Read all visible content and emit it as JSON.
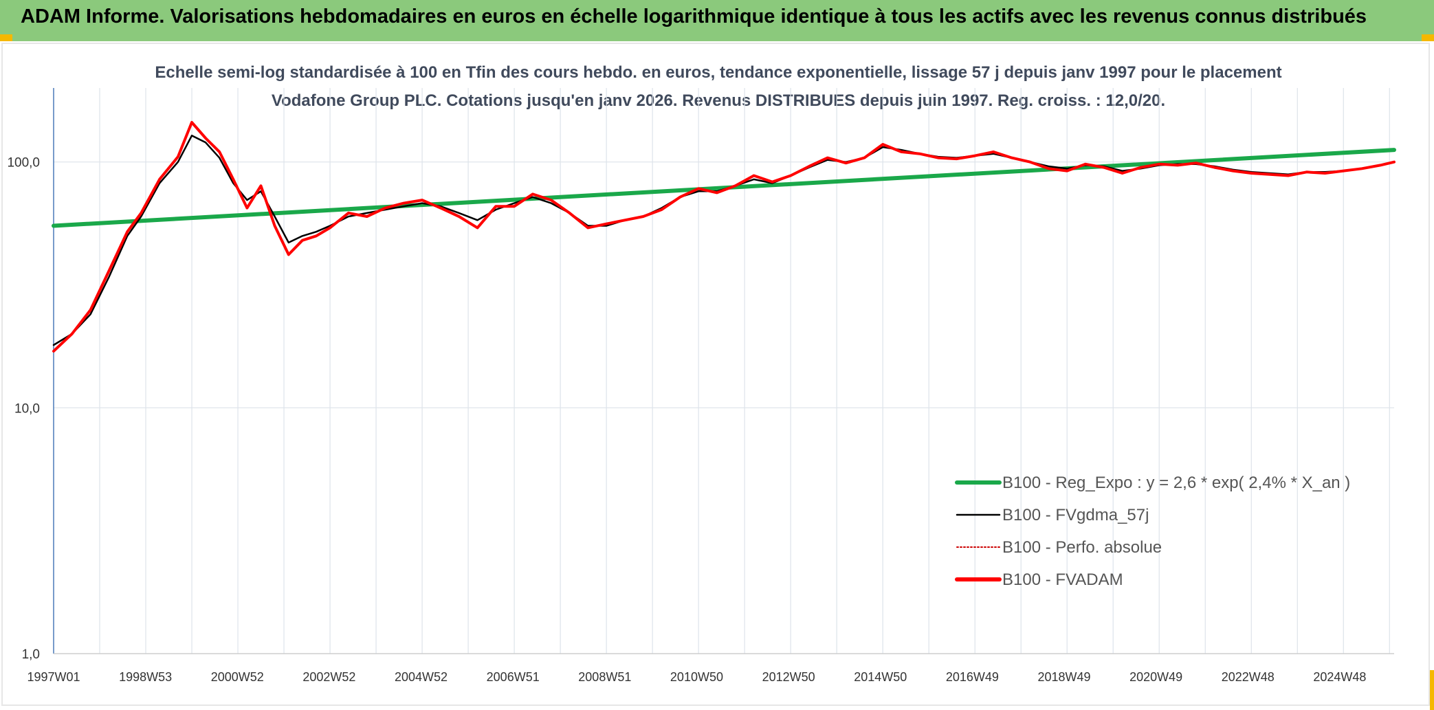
{
  "header": {
    "title": "ADAM Informe. Valorisations hebdomadaires en euros en échelle logarithmique identique à tous les actifs avec les revenus connus distribués",
    "bar_color": "#8bc97c",
    "corner_color": "#f5b800"
  },
  "chart_data": {
    "type": "line",
    "title": "Echelle semi-log standardisée à 100 en Tfin des cours hebdo. en euros, tendance exponentielle, lissage 57 j depuis janv 1997 pour le placement Vodafone Group PLC. Cotations jusqu'en janv 2026. Revenus DISTRIBUES depuis juin 1997. Reg. croiss. : 12,0/20.",
    "xlabel": "",
    "ylabel": "",
    "yscale": "log",
    "ylim": [
      1,
      200
    ],
    "grid": true,
    "legend_position": "bottom-right",
    "y_ticks": [
      "1,0",
      "10,0",
      "100,0"
    ],
    "x_ticks": [
      "1997W01",
      "1998W53",
      "2000W52",
      "2002W52",
      "2004W52",
      "2006W51",
      "2008W51",
      "2010W50",
      "2012W50",
      "2014W50",
      "2016W49",
      "2018W49",
      "2020W49",
      "2022W48",
      "2024W48"
    ],
    "x_range": [
      "1997W01",
      "2026W03"
    ],
    "series": [
      {
        "name": "B100 - Reg_Expo : y = 2,6 * exp( 2,4% *  X_an )",
        "color": "#1aa84a",
        "style": "solid-thick",
        "x": [
          1997.0,
          2026.1
        ],
        "y": [
          55,
          112
        ]
      },
      {
        "name": "B100 - FVgdma_57j",
        "color": "#000000",
        "style": "solid-thin",
        "x": [
          1997.0,
          1997.4,
          1997.8,
          1998.2,
          1998.6,
          1998.9,
          1999.3,
          1999.7,
          2000.0,
          2000.3,
          2000.6,
          2000.9,
          2001.2,
          2001.5,
          2001.8,
          2002.1,
          2002.4,
          2002.7,
          2003.0,
          2003.4,
          2003.8,
          2004.2,
          2004.6,
          2005.0,
          2005.4,
          2005.8,
          2006.2,
          2006.6,
          2007.0,
          2007.4,
          2007.8,
          2008.2,
          2008.6,
          2009.0,
          2009.4,
          2009.8,
          2010.2,
          2010.6,
          2011.0,
          2011.4,
          2011.8,
          2012.2,
          2012.6,
          2013.0,
          2013.4,
          2013.8,
          2014.2,
          2014.6,
          2015.0,
          2015.4,
          2015.8,
          2016.2,
          2016.6,
          2017.0,
          2017.4,
          2017.8,
          2018.2,
          2018.6,
          2019.0,
          2019.4,
          2019.8,
          2020.2,
          2020.6,
          2021.0,
          2021.4,
          2021.8,
          2022.2,
          2022.6,
          2023.0,
          2023.4,
          2023.8,
          2024.2,
          2024.6,
          2025.0,
          2025.4,
          2025.8,
          2026.1
        ],
        "y": [
          18,
          20,
          24,
          34,
          50,
          60,
          82,
          100,
          128,
          120,
          104,
          82,
          70,
          76,
          60,
          47,
          50,
          52,
          55,
          60,
          62,
          64,
          66,
          68,
          66,
          62,
          58,
          64,
          68,
          72,
          68,
          62,
          55,
          55,
          58,
          60,
          65,
          72,
          76,
          76,
          80,
          85,
          82,
          88,
          95,
          102,
          100,
          104,
          115,
          112,
          108,
          105,
          104,
          106,
          108,
          104,
          100,
          96,
          94,
          97,
          96,
          92,
          94,
          97,
          98,
          98,
          96,
          93,
          91,
          90,
          89,
          91,
          91,
          92,
          94,
          97,
          100
        ]
      },
      {
        "name": "B100 - Perfo. absolue",
        "color": "#cc0000",
        "style": "dotted",
        "x": [
          1997.0,
          1997.4,
          1997.8,
          1998.2,
          1998.6,
          1998.9,
          1999.3,
          1999.7,
          2000.0,
          2000.3,
          2000.6,
          2000.9,
          2001.2,
          2001.5,
          2001.8,
          2002.1,
          2002.4,
          2002.7,
          2003.0,
          2003.4,
          2003.8,
          2004.2,
          2004.6,
          2005.0,
          2005.4,
          2005.8,
          2006.2,
          2006.6,
          2007.0,
          2007.4,
          2007.8,
          2008.2,
          2008.6,
          2009.0,
          2009.4,
          2009.8,
          2010.2,
          2010.6,
          2011.0,
          2011.4,
          2011.8,
          2012.2,
          2012.6,
          2013.0,
          2013.4,
          2013.8,
          2014.2,
          2014.6,
          2015.0,
          2015.4,
          2015.8,
          2016.2,
          2016.6,
          2017.0,
          2017.4,
          2017.8,
          2018.2,
          2018.6,
          2019.0,
          2019.4,
          2019.8,
          2020.2,
          2020.6,
          2021.0,
          2021.4,
          2021.8,
          2022.2,
          2022.6,
          2023.0,
          2023.4,
          2023.8,
          2024.2,
          2024.6,
          2025.0,
          2025.4,
          2025.8,
          2026.1
        ],
        "y": [
          17,
          20,
          25,
          36,
          52,
          62,
          85,
          105,
          145,
          125,
          110,
          85,
          65,
          80,
          55,
          42,
          48,
          50,
          54,
          62,
          60,
          65,
          68,
          70,
          65,
          60,
          54,
          66,
          66,
          74,
          70,
          62,
          54,
          56,
          58,
          60,
          64,
          72,
          78,
          75,
          80,
          88,
          83,
          88,
          96,
          104,
          99,
          104,
          118,
          110,
          108,
          104,
          103,
          106,
          110,
          104,
          100,
          94,
          92,
          98,
          95,
          90,
          95,
          98,
          97,
          99,
          95,
          92,
          90,
          89,
          88,
          91,
          90,
          92,
          94,
          97,
          100
        ]
      },
      {
        "name": "B100 - FVADAM",
        "color": "#ff0000",
        "style": "solid-thick",
        "x": [
          1997.0,
          1997.4,
          1997.8,
          1998.2,
          1998.6,
          1998.9,
          1999.3,
          1999.7,
          2000.0,
          2000.3,
          2000.6,
          2000.9,
          2001.2,
          2001.5,
          2001.8,
          2002.1,
          2002.4,
          2002.7,
          2003.0,
          2003.4,
          2003.8,
          2004.2,
          2004.6,
          2005.0,
          2005.4,
          2005.8,
          2006.2,
          2006.6,
          2007.0,
          2007.4,
          2007.8,
          2008.2,
          2008.6,
          2009.0,
          2009.4,
          2009.8,
          2010.2,
          2010.6,
          2011.0,
          2011.4,
          2011.8,
          2012.2,
          2012.6,
          2013.0,
          2013.4,
          2013.8,
          2014.2,
          2014.6,
          2015.0,
          2015.4,
          2015.8,
          2016.2,
          2016.6,
          2017.0,
          2017.4,
          2017.8,
          2018.2,
          2018.6,
          2019.0,
          2019.4,
          2019.8,
          2020.2,
          2020.6,
          2021.0,
          2021.4,
          2021.8,
          2022.2,
          2022.6,
          2023.0,
          2023.4,
          2023.8,
          2024.2,
          2024.6,
          2025.0,
          2025.4,
          2025.8,
          2026.1
        ],
        "y": [
          17,
          20,
          25,
          36,
          52,
          62,
          85,
          105,
          145,
          125,
          110,
          85,
          65,
          80,
          55,
          42,
          48,
          50,
          54,
          62,
          60,
          65,
          68,
          70,
          65,
          60,
          54,
          66,
          66,
          74,
          70,
          62,
          54,
          56,
          58,
          60,
          64,
          72,
          78,
          75,
          80,
          88,
          83,
          88,
          96,
          104,
          99,
          104,
          118,
          110,
          108,
          104,
          103,
          106,
          110,
          104,
          100,
          94,
          92,
          98,
          95,
          90,
          95,
          98,
          97,
          99,
          95,
          92,
          90,
          89,
          88,
          91,
          90,
          92,
          94,
          97,
          100
        ]
      }
    ]
  }
}
